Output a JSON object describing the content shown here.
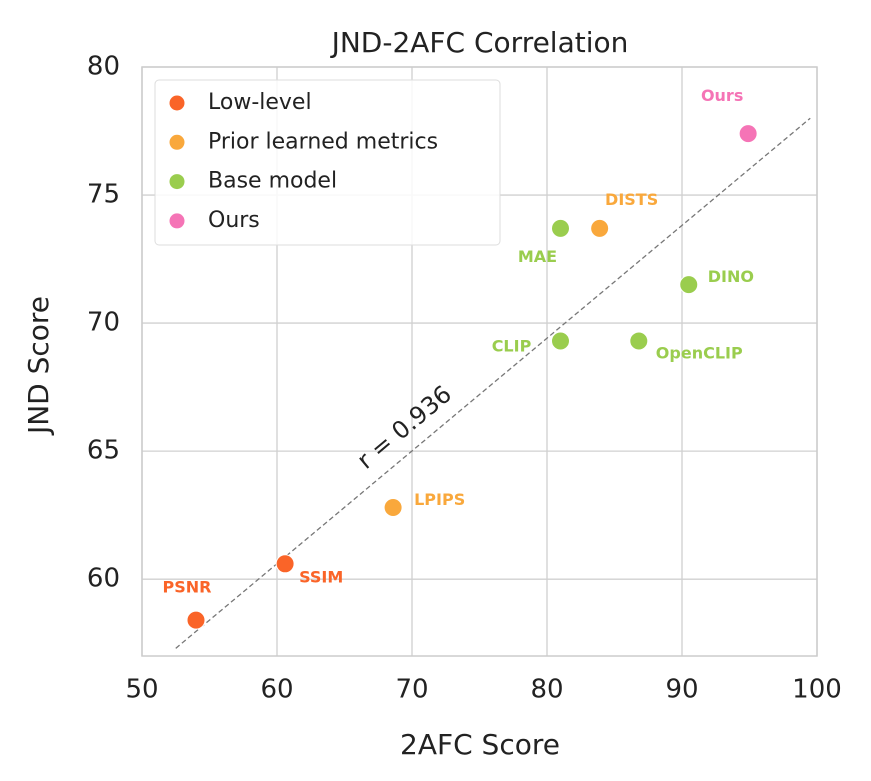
{
  "chart_data": {
    "type": "scatter",
    "title": "JND-2AFC Correlation",
    "x_label": "2AFC Score",
    "y_label": "JND Score",
    "xlim": [
      50,
      100
    ],
    "ylim": [
      57,
      80
    ],
    "xticks": [
      50,
      60,
      70,
      80,
      90,
      100
    ],
    "yticks": [
      60,
      65,
      70,
      75,
      80
    ],
    "grid": true,
    "legend": "upper left",
    "series": [
      {
        "name": "Low-level",
        "color": "#fa6428",
        "x": [
          54.0,
          60.6
        ],
        "y": [
          58.4,
          60.6
        ],
        "labels": [
          "PSNR",
          "SSIM"
        ]
      },
      {
        "name": "Prior learned metrics",
        "color": "#f9a83c",
        "x": [
          68.6,
          83.9
        ],
        "y": [
          62.8,
          73.7
        ],
        "labels": [
          "LPIPS",
          "DISTS"
        ]
      },
      {
        "name": "Base model",
        "color": "#9acd4e",
        "x": [
          81.0,
          90.5,
          81.0,
          86.8
        ],
        "y": [
          73.7,
          71.5,
          69.3,
          69.3
        ],
        "labels": [
          "MAE",
          "DINO",
          "CLIP",
          "OpenCLIP"
        ]
      },
      {
        "name": "Ours",
        "color": "#f574b6",
        "x": [
          94.9
        ],
        "y": [
          77.4
        ],
        "labels": [
          "Ours"
        ]
      }
    ],
    "fit_line": {
      "x": [
        52.5,
        99.5
      ],
      "y": [
        57.3,
        78.0
      ]
    },
    "annotation": "r = 0.936"
  }
}
